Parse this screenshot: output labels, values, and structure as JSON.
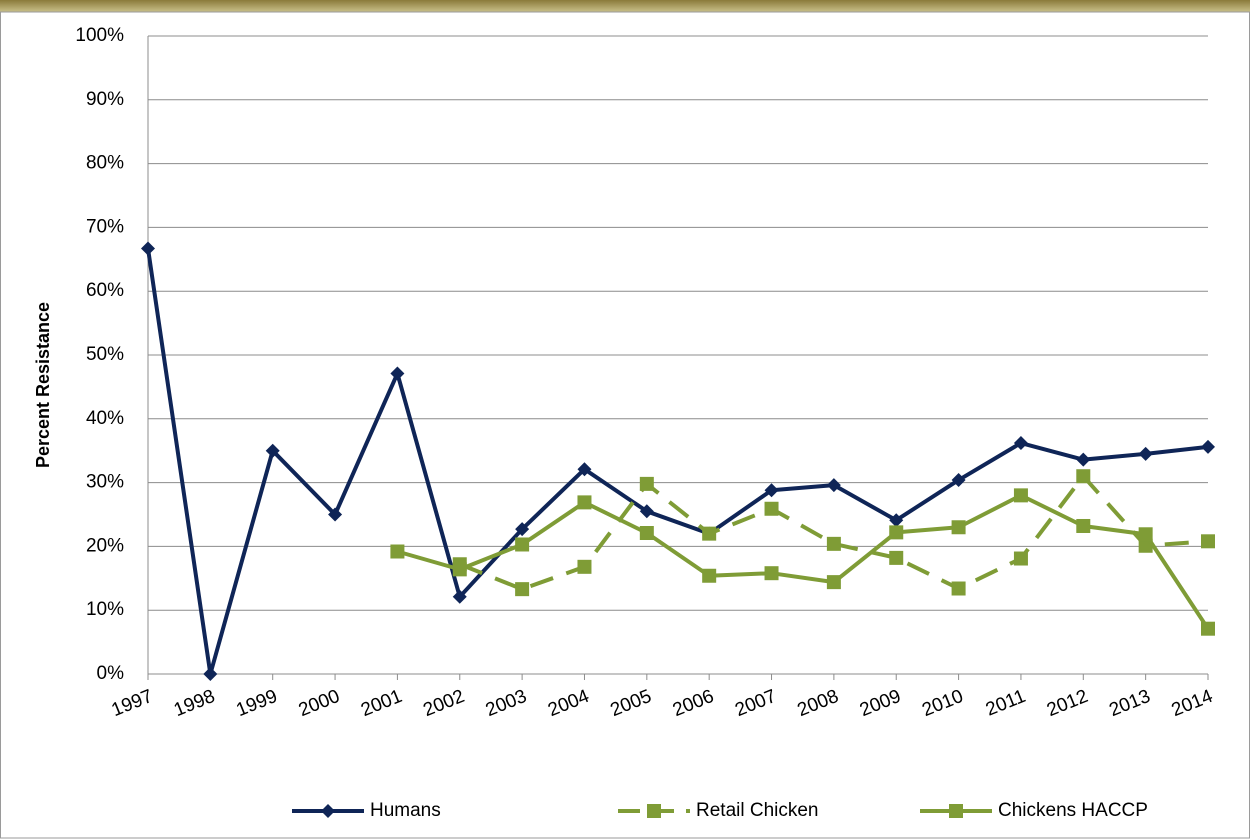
{
  "chart_data": {
    "type": "line",
    "y_label": "Percent Resistance",
    "categories": [
      "1997",
      "1998",
      "1999",
      "2000",
      "2001",
      "2002",
      "2003",
      "2004",
      "2005",
      "2006",
      "2007",
      "2008",
      "2009",
      "2010",
      "2011",
      "2012",
      "2013",
      "2014"
    ],
    "series": [
      {
        "name": "Humans",
        "color": "#0f2557",
        "dash": false,
        "marker": "diamond",
        "values": [
          66.7,
          0,
          35,
          25,
          47.1,
          12.1,
          22.7,
          32.1,
          25.5,
          22.0,
          28.8,
          29.6,
          24.1,
          30.4,
          36.2,
          33.6,
          34.5,
          35.6
        ]
      },
      {
        "name": "Retail Chicken",
        "color": "#7f9c36",
        "dash": true,
        "marker": "square",
        "values": [
          null,
          null,
          null,
          null,
          null,
          17.2,
          13.3,
          16.8,
          29.8,
          22.0,
          25.9,
          20.4,
          18.2,
          13.4,
          18.1,
          31.0,
          20.1,
          20.8
        ]
      },
      {
        "name": "Chickens HACCP",
        "color": "#7f9c36",
        "dash": false,
        "marker": "square",
        "values": [
          null,
          null,
          null,
          null,
          19.2,
          16.4,
          20.3,
          26.9,
          22.1,
          15.4,
          15.8,
          14.4,
          22.2,
          23.0,
          28.0,
          23.2,
          21.9,
          7.1
        ]
      }
    ],
    "ylim": [
      0,
      100
    ],
    "yticks": [
      {
        "value": 0,
        "label": "0%"
      },
      {
        "value": 10,
        "label": "10%"
      },
      {
        "value": 20,
        "label": "20%"
      },
      {
        "value": 30,
        "label": "30%"
      },
      {
        "value": 40,
        "label": "40%"
      },
      {
        "value": 50,
        "label": "50%"
      },
      {
        "value": 60,
        "label": "60%"
      },
      {
        "value": 70,
        "label": "70%"
      },
      {
        "value": 80,
        "label": "80%"
      },
      {
        "value": 90,
        "label": "90%"
      },
      {
        "value": 100,
        "label": "100%"
      }
    ],
    "grid": true,
    "legend": "bottom"
  }
}
